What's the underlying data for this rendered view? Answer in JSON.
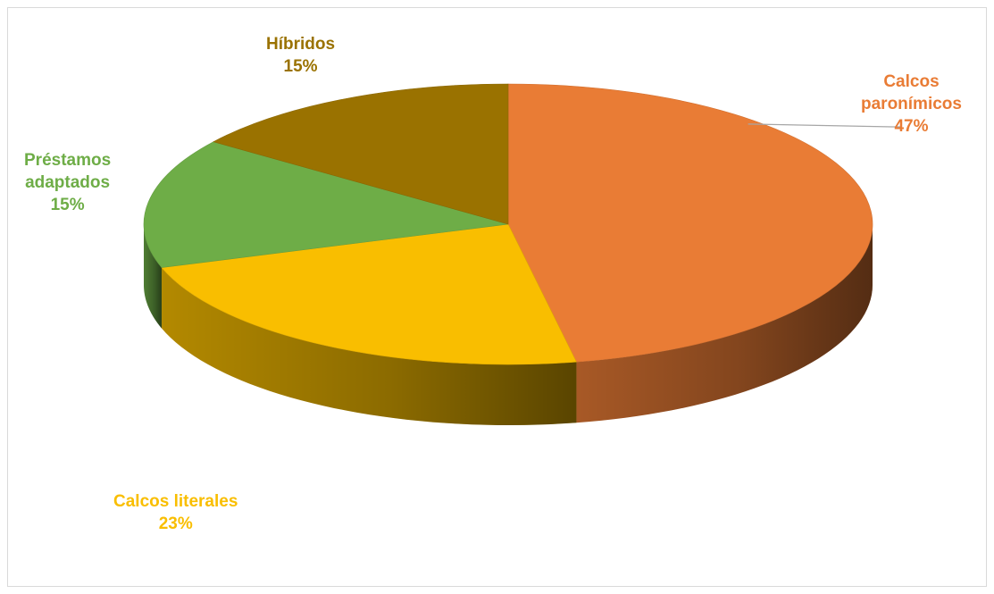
{
  "chart_data": {
    "type": "pie",
    "title": "",
    "style": "3d",
    "slices": [
      {
        "label": "Calcos paronímicos",
        "label_lines": [
          "Calcos",
          "paronímicos"
        ],
        "value": 47,
        "value_label": "47%",
        "color": "#E97C35"
      },
      {
        "label": "Calcos literales",
        "label_lines": [
          "Calcos literales"
        ],
        "value": 23,
        "value_label": "23%",
        "color": "#F9BE00"
      },
      {
        "label": "Préstamos adaptados",
        "label_lines": [
          "Préstamos",
          "adaptados"
        ],
        "value": 15,
        "value_label": "15%",
        "color": "#6EAD47"
      },
      {
        "label": "Híbridos",
        "label_lines": [
          "Híbridos"
        ],
        "value": 15,
        "value_label": "15%",
        "color": "#9A7200"
      }
    ]
  }
}
